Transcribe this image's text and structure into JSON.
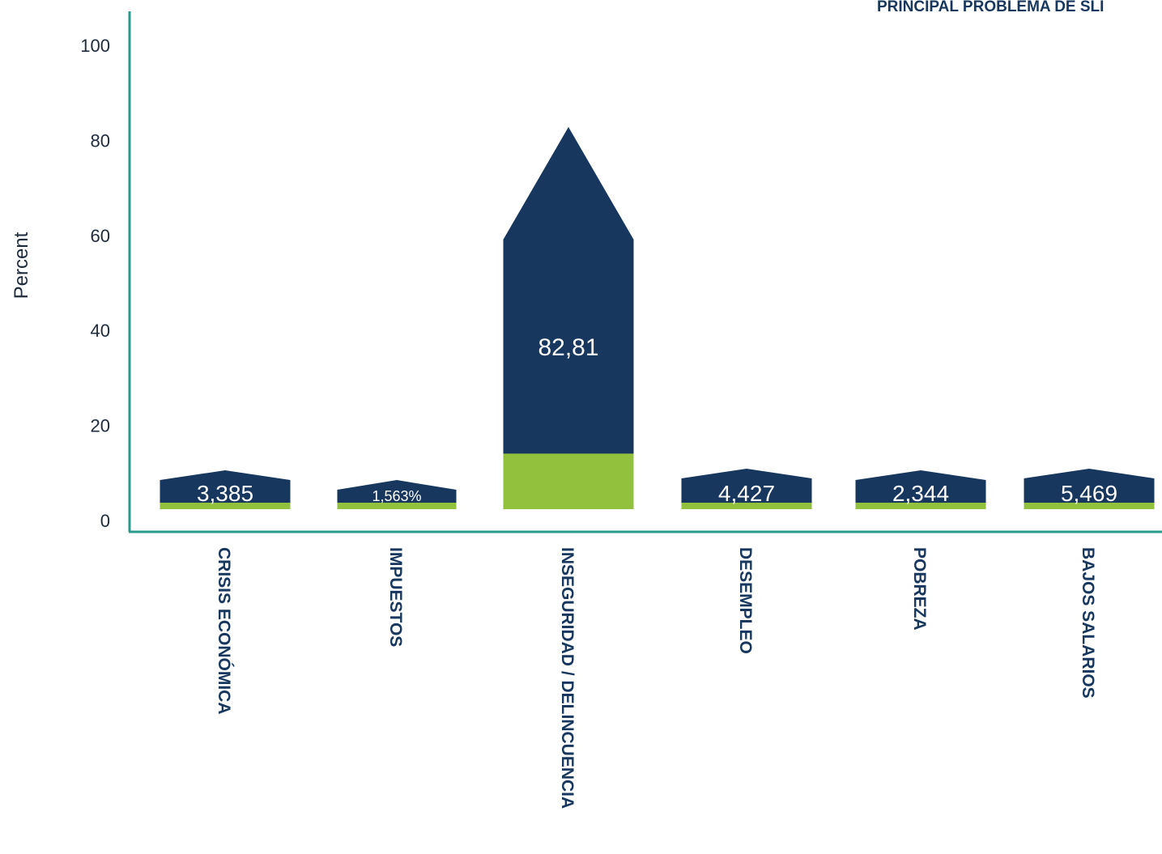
{
  "chart_data": {
    "type": "bar",
    "title": "PRINCIPAL PROBLEMA DE SLI",
    "xlabel": "",
    "ylabel": "Percent",
    "ylim": [
      0,
      100
    ],
    "yticks": [
      0,
      20,
      40,
      60,
      80,
      100
    ],
    "categories": [
      "CRISIS ECONÓMICA",
      "IMPUESTOS",
      "INSEGURIDAD / DELINCUENCIA",
      "DESEMPLEO",
      "POBREZA",
      "BAJOS SALARIOS"
    ],
    "values": [
      3.385,
      1.563,
      82.81,
      4.427,
      2.344,
      5.469
    ],
    "data_labels": [
      "3,385",
      "1,563%",
      "82,81",
      "4,427",
      "2,344",
      "5,469"
    ],
    "colors": {
      "bar": "#17375e",
      "base": "#92c13e",
      "axis": "#2a9a8c",
      "text": "#17375e"
    }
  }
}
